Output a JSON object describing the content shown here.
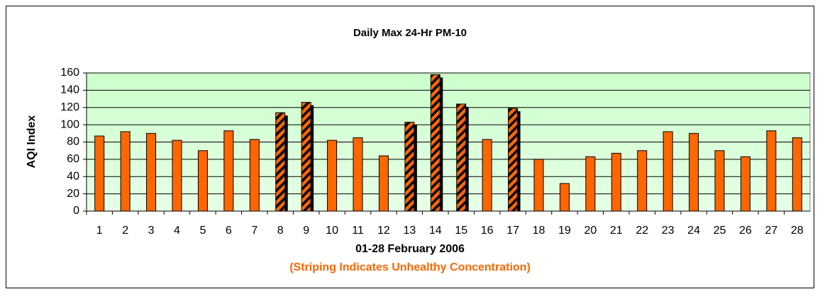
{
  "chart_data": {
    "type": "bar",
    "title": "Daily Max 24-Hr PM-10",
    "x_label": "01-28 February 2006",
    "y_label": "AQI Index",
    "annotation": "(Striping Indicates Unhealthy Concentration)",
    "categories": [
      "1",
      "2",
      "3",
      "4",
      "5",
      "6",
      "7",
      "8",
      "9",
      "10",
      "11",
      "12",
      "13",
      "14",
      "15",
      "16",
      "17",
      "18",
      "19",
      "20",
      "21",
      "22",
      "23",
      "24",
      "25",
      "26",
      "27",
      "28"
    ],
    "values": [
      87,
      92,
      90,
      82,
      70,
      93,
      83,
      114,
      126,
      82,
      85,
      64,
      103,
      158,
      124,
      83,
      119,
      60,
      32,
      63,
      67,
      70,
      92,
      90,
      70,
      63,
      93,
      85
    ],
    "striped": [
      false,
      false,
      false,
      false,
      false,
      false,
      false,
      true,
      true,
      false,
      false,
      false,
      true,
      true,
      true,
      false,
      true,
      false,
      false,
      false,
      false,
      false,
      false,
      false,
      false,
      false,
      false,
      false
    ],
    "color": "#ff6600",
    "ylim": [
      0,
      160
    ],
    "yticks": [
      0,
      20,
      40,
      60,
      80,
      100,
      120,
      140,
      160
    ],
    "grid": true
  }
}
